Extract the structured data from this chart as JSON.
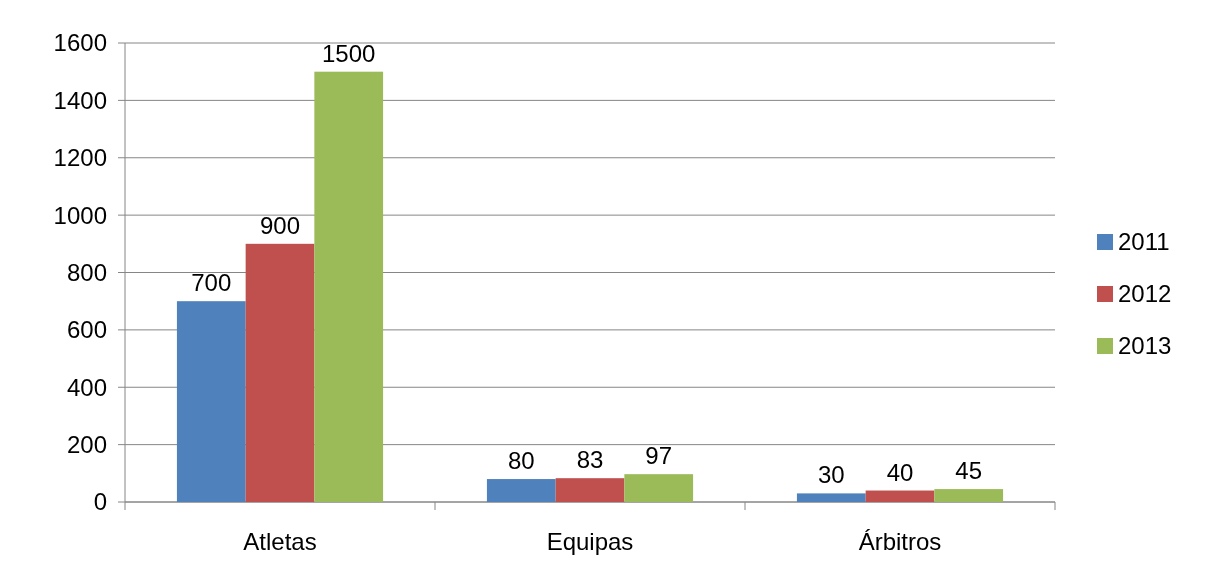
{
  "chart_data": {
    "type": "bar",
    "categories": [
      "Atletas",
      "Equipas",
      "Árbitros"
    ],
    "series": [
      {
        "name": "2011",
        "color": "#4f81bd",
        "values": [
          700,
          80,
          30
        ]
      },
      {
        "name": "2012",
        "color": "#c0504d",
        "values": [
          900,
          83,
          40
        ]
      },
      {
        "name": "2013",
        "color": "#9bbb59",
        "values": [
          1500,
          97,
          45
        ]
      }
    ],
    "ylim": [
      0,
      1600
    ],
    "yticks": [
      0,
      200,
      400,
      600,
      800,
      1000,
      1200,
      1400,
      1600
    ],
    "grid": "y",
    "legend": "right",
    "data_labels": true
  }
}
